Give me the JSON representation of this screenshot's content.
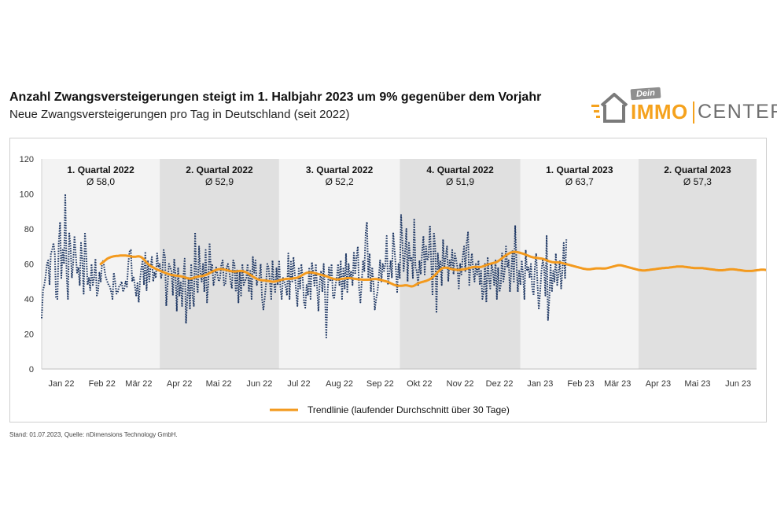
{
  "header": {
    "title": "Anzahl Zwangsversteigerungen steigt im 1. Halbjahr 2023 um 9% gegenüber dem Vorjahr",
    "subtitle": "Neue Zwangsversteigerungen pro Tag in Deutschland (seit 2022)"
  },
  "logo": {
    "dein": "Dein",
    "immo": "IMMO",
    "center": "CENTER"
  },
  "footnote": "Stand: 01.07.2023, Quelle: nDimensions Technology GmbH.",
  "colors": {
    "daily": "#1f3864",
    "trend": "#f39a1e",
    "band_light": "#f3f3f3",
    "band_dark": "#e0e0e0"
  },
  "chart_data": {
    "type": "line",
    "title": "Neue Zwangsversteigerungen pro Tag in Deutschland (seit 2022)",
    "ylim": [
      0,
      120
    ],
    "yticks": [
      0,
      20,
      40,
      60,
      80,
      100,
      120
    ],
    "month_labels": [
      "Jan 22",
      "Feb 22",
      "Mär 22",
      "Apr 22",
      "Mai 22",
      "Jun 22",
      "Jul 22",
      "Aug 22",
      "Sep 22",
      "Okt 22",
      "Nov 22",
      "Dez 22",
      "Jan 23",
      "Feb 23",
      "Mär 23",
      "Apr 23",
      "Mai 23",
      "Jun 23"
    ],
    "quarters": [
      {
        "label": "1. Quartal 2022",
        "avg": "Ø 58,0"
      },
      {
        "label": "2. Quartal 2022",
        "avg": "Ø 52,9"
      },
      {
        "label": "3. Quartal 2022",
        "avg": "Ø 52,2"
      },
      {
        "label": "4. Quartal 2022",
        "avg": "Ø 51,9"
      },
      {
        "label": "1. Quartal 2023",
        "avg": "Ø 63,7"
      },
      {
        "label": "2. Quartal 2023",
        "avg": "Ø 57,3"
      }
    ],
    "series": [
      {
        "name": "Neue Zwangsversteigerungen pro Tag",
        "style": "dotted",
        "note": "daily values approximated from figure, one value per day from 1 Jan 2022 to 30 Jun 2023",
        "values": [
          29,
          45,
          48,
          53,
          60,
          62,
          48,
          66,
          68,
          72,
          66,
          41,
          40,
          72,
          84,
          52,
          68,
          60,
          100,
          54,
          40,
          78,
          70,
          52,
          60,
          76,
          65,
          55,
          58,
          48,
          72,
          62,
          43,
          78,
          65,
          48,
          52,
          45,
          60,
          48,
          52,
          63,
          42,
          44,
          55,
          50,
          60,
          62,
          56,
          52,
          50,
          48,
          47,
          44,
          40,
          55,
          50,
          43,
          44,
          47,
          48,
          50,
          44,
          46,
          50,
          47,
          60,
          67,
          68,
          50,
          53,
          48,
          42,
          49,
          38,
          51,
          58,
          62,
          48,
          67,
          45,
          62,
          50,
          58,
          64,
          50,
          55,
          52,
          66,
          58,
          60,
          52,
          55,
          68,
          64,
          36,
          48,
          60,
          58,
          56,
          42,
          63,
          54,
          33,
          58,
          42,
          50,
          36,
          52,
          63,
          26,
          40,
          52,
          34,
          60,
          42,
          36,
          78,
          50,
          44,
          70,
          55,
          50,
          60,
          44,
          68,
          38,
          48,
          72,
          56,
          60,
          48,
          52,
          58,
          54,
          50,
          52,
          60,
          62,
          48,
          48,
          58,
          60,
          56,
          50,
          46,
          62,
          60,
          44,
          57,
          38,
          56,
          42,
          60,
          48,
          50,
          52,
          60,
          44,
          56,
          40,
          64,
          55,
          62,
          48,
          52,
          52,
          60,
          40,
          34,
          40,
          48,
          60,
          58,
          50,
          40,
          62,
          50,
          44,
          58,
          48,
          62,
          46,
          40,
          52,
          50,
          47,
          42,
          66,
          40,
          62,
          50,
          64,
          54,
          44,
          36,
          58,
          46,
          60,
          52,
          38,
          35,
          48,
          42,
          58,
          40,
          61,
          55,
          47,
          60,
          46,
          33,
          50,
          56,
          44,
          60,
          42,
          18,
          44,
          58,
          50,
          60,
          42,
          40,
          48,
          52,
          60,
          48,
          62,
          40,
          58,
          46,
          66,
          44,
          60,
          52,
          56,
          48,
          67,
          54,
          64,
          70,
          46,
          38,
          50,
          62,
          56,
          78,
          84,
          52,
          66,
          44,
          58,
          48,
          34,
          40,
          44,
          52,
          62,
          50,
          60,
          56,
          60,
          76,
          48,
          54,
          62,
          52,
          78,
          68,
          58,
          44,
          60,
          52,
          88,
          72,
          56,
          66,
          80,
          50,
          72,
          62,
          64,
          52,
          86,
          58,
          56,
          48,
          62,
          54,
          66,
          76,
          54,
          70,
          62,
          64,
          82,
          60,
          42,
          78,
          70,
          32,
          66,
          56,
          62,
          48,
          74,
          58,
          64,
          70,
          50,
          62,
          58,
          68,
          54,
          66,
          62,
          58,
          46,
          60,
          54,
          64,
          70,
          56,
          72,
          78,
          48,
          60,
          66,
          56,
          50,
          60,
          54,
          62,
          48,
          56,
          40,
          44,
          60,
          38,
          64,
          52,
          46,
          60,
          56,
          48,
          62,
          40,
          58,
          44,
          48,
          66,
          50,
          56,
          70,
          58,
          62,
          44,
          56,
          68,
          50,
          82,
          60,
          44,
          56,
          48,
          62,
          54,
          40,
          68,
          56,
          58,
          52,
          60,
          46,
          42,
          58,
          66,
          48,
          34,
          44,
          56,
          62,
          58,
          42,
          76,
          28,
          40,
          60,
          44,
          56,
          50,
          66,
          48,
          54,
          62,
          46,
          56,
          72,
          52,
          74
        ]
      },
      {
        "name": "Trendlinie (laufender Durchschnitt über 30 Tage)",
        "style": "solid",
        "start_day": 45,
        "note": "30-day running average, values approximated from figure, one value per day from day 45 to 545",
        "values": [
          60.0,
          60.6,
          61.2,
          61.8,
          62.4,
          63.0,
          63.4,
          63.7,
          64.0,
          64.2,
          64.4,
          64.5,
          64.6,
          64.6,
          64.7,
          64.8,
          64.8,
          64.8,
          64.8,
          64.8,
          64.7,
          64.6,
          64.5,
          64.3,
          64.2,
          64.1,
          64.1,
          64.2,
          64.3,
          64.4,
          64.2,
          63.8,
          63.3,
          62.5,
          61.7,
          60.8,
          60.1,
          59.4,
          58.9,
          58.4,
          58.0,
          57.6,
          57.2,
          56.9,
          56.5,
          56.2,
          55.9,
          55.6,
          55.3,
          55.0,
          54.7,
          54.4,
          54.1,
          53.9,
          53.7,
          53.6,
          53.5,
          53.4,
          53.3,
          53.2,
          53.1,
          53.0,
          52.8,
          52.6,
          52.4,
          52.1,
          51.9,
          51.7,
          51.6,
          51.6,
          51.8,
          52.1,
          52.4,
          52.6,
          52.8,
          52.9,
          53.0,
          53.1,
          53.2,
          53.4,
          53.7,
          54.0,
          54.4,
          54.8,
          55.2,
          55.6,
          56.0,
          56.3,
          56.6,
          56.8,
          57.0,
          57.1,
          57.1,
          57.0,
          56.9,
          56.7,
          56.5,
          56.3,
          56.1,
          55.9,
          55.8,
          55.7,
          55.7,
          55.7,
          55.8,
          55.9,
          56.0,
          56.0,
          55.9,
          55.7,
          55.5,
          55.2,
          54.8,
          54.3,
          53.8,
          53.3,
          52.8,
          52.3,
          51.9,
          51.5,
          51.2,
          51.0,
          50.8,
          50.7,
          50.6,
          50.6,
          50.5,
          50.4,
          50.3,
          50.1,
          50.0,
          49.9,
          49.9,
          50.0,
          50.2,
          50.4,
          50.6,
          50.8,
          51.0,
          51.2,
          51.3,
          51.4,
          51.5,
          51.6,
          51.6,
          51.6,
          51.7,
          51.8,
          51.9,
          52.0,
          52.2,
          52.5,
          52.9,
          53.3,
          53.8,
          54.2,
          54.6,
          54.9,
          55.1,
          55.2,
          55.2,
          55.1,
          55.0,
          54.8,
          54.6,
          54.4,
          54.2,
          54.0,
          53.8,
          53.6,
          53.4,
          53.2,
          53.0,
          52.7,
          52.4,
          52.1,
          51.8,
          51.6,
          51.4,
          51.3,
          51.2,
          51.2,
          51.3,
          51.4,
          51.5,
          51.6,
          51.7,
          51.8,
          51.9,
          51.9,
          51.9,
          51.8,
          51.7,
          51.6,
          51.5,
          51.4,
          51.3,
          51.2,
          51.2,
          51.1,
          51.0,
          51.0,
          51.0,
          51.0,
          51.0,
          51.1,
          51.2,
          51.3,
          51.4,
          51.4,
          51.4,
          51.3,
          51.2,
          51.0,
          50.8,
          50.6,
          50.4,
          50.2,
          50.0,
          49.7,
          49.4,
          49.0,
          48.7,
          48.3,
          48.0,
          47.8,
          47.6,
          47.5,
          47.5,
          47.5,
          47.6,
          47.7,
          47.8,
          47.8,
          47.7,
          47.5,
          47.3,
          47.2,
          47.3,
          47.6,
          48.0,
          48.5,
          48.9,
          49.2,
          49.5,
          49.7,
          49.9,
          50.1,
          50.3,
          50.6,
          50.9,
          51.3,
          51.8,
          52.4,
          53.1,
          53.8,
          54.6,
          55.4,
          56.1,
          56.8,
          57.3,
          57.7,
          57.9,
          57.9,
          57.8,
          57.6,
          57.4,
          57.2,
          57.0,
          56.9,
          56.8,
          56.7,
          56.6,
          56.6,
          56.7,
          56.8,
          56.9,
          57.0,
          57.1,
          57.3,
          57.5,
          57.7,
          57.9,
          58.1,
          58.2,
          58.3,
          58.3,
          58.3,
          58.2,
          58.2,
          58.3,
          58.5,
          58.8,
          59.1,
          59.4,
          59.7,
          59.9,
          60.1,
          60.3,
          60.5,
          60.7,
          60.9,
          61.2,
          61.6,
          62.1,
          62.7,
          63.3,
          63.9,
          64.5,
          65.0,
          65.5,
          65.9,
          66.3,
          66.6,
          66.8,
          66.9,
          66.9,
          66.8,
          66.7,
          66.5,
          66.3,
          66.1,
          65.9,
          65.6,
          65.3,
          65.0,
          64.7,
          64.4,
          64.1,
          63.9,
          63.7,
          63.6,
          63.5,
          63.4,
          63.3,
          63.2,
          63.1,
          62.9,
          62.7,
          62.4,
          62.1,
          61.8,
          61.5,
          61.3,
          61.1,
          61.0,
          60.9,
          60.9,
          60.9,
          60.9,
          60.8,
          60.7,
          60.5,
          60.3,
          60.1,
          59.9,
          59.7,
          59.5,
          59.3,
          59.1,
          58.9,
          58.7,
          58.5,
          58.3,
          58.1,
          57.9,
          57.7,
          57.5,
          57.3,
          57.2,
          57.1,
          57.0,
          57.0,
          57.0,
          57.1,
          57.2,
          57.3,
          57.4,
          57.5,
          57.5,
          57.5,
          57.5,
          57.4,
          57.4,
          57.4,
          57.5,
          57.6,
          57.8,
          58.0,
          58.2,
          58.4,
          58.6,
          58.8,
          59.0,
          59.2,
          59.3,
          59.3,
          59.2,
          59.0,
          58.8,
          58.6,
          58.4,
          58.2,
          58.0,
          57.8,
          57.6,
          57.4,
          57.2,
          57.0,
          56.8,
          56.6,
          56.5,
          56.4,
          56.3,
          56.3,
          56.3,
          56.4,
          56.5,
          56.6,
          56.7,
          56.8,
          56.9,
          57.0,
          57.1,
          57.2,
          57.3,
          57.4,
          57.5,
          57.6,
          57.6,
          57.7,
          57.8,
          57.8,
          57.9,
          58.0,
          58.1,
          58.2,
          58.3,
          58.4,
          58.5,
          58.5,
          58.5,
          58.5,
          58.5,
          58.5,
          58.4,
          58.3,
          58.2,
          58.1,
          58.0,
          57.9,
          57.8,
          57.7,
          57.6,
          57.6,
          57.6,
          57.6,
          57.6,
          57.6,
          57.6,
          57.5,
          57.4,
          57.3,
          57.2,
          57.1,
          57.0,
          56.9,
          56.8,
          56.7,
          56.6,
          56.5,
          56.4,
          56.4,
          56.4,
          56.4,
          56.5,
          56.6,
          56.7,
          56.8,
          56.9,
          57.0,
          57.0,
          57.0,
          56.9,
          56.8,
          56.7,
          56.6,
          56.5,
          56.4,
          56.3,
          56.2,
          56.1,
          56.0,
          56.0,
          56.0,
          56.0,
          56.0,
          56.1,
          56.2,
          56.3,
          56.4,
          56.5,
          56.6,
          56.7,
          56.7,
          56.7,
          56.7,
          56.6,
          56.5
        ]
      }
    ],
    "legend": {
      "label": "Trendlinie (laufender Durchschnitt über 30 Tage)",
      "position": "bottom-center"
    }
  }
}
